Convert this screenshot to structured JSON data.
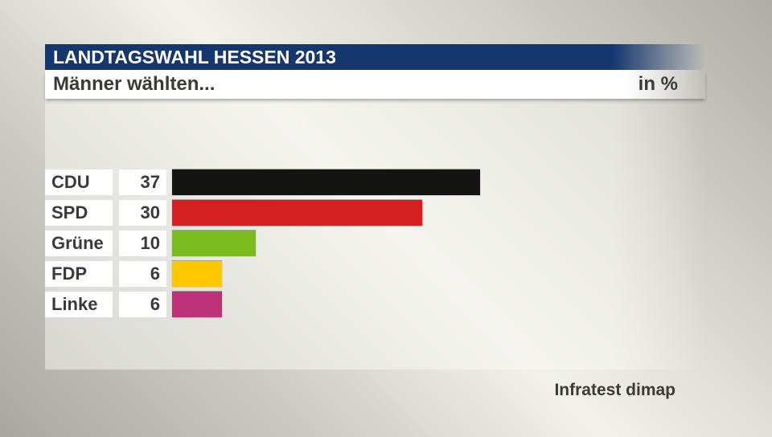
{
  "header": {
    "title": "LANDTAGSWAHL HESSEN 2013",
    "subtitle": "Männer wählten...",
    "unit_label": "in %"
  },
  "footer": {
    "source_label": "Infratest dimap"
  },
  "colors": {
    "header_bar": "#15376e",
    "text_dark": "#3a3a37",
    "box_background": "#ffffff"
  },
  "chart_data": {
    "type": "bar",
    "orientation": "horizontal",
    "title": "Männer wählten...",
    "unit": "%",
    "categories": [
      "CDU",
      "SPD",
      "Grüne",
      "FDP",
      "Linke"
    ],
    "values": [
      37,
      30,
      10,
      6,
      6
    ],
    "bar_colors": [
      "#141413",
      "#d42020",
      "#7abb1d",
      "#fdc800",
      "#bd3176"
    ],
    "xlim": [
      0,
      40
    ],
    "grid": false,
    "legend": false,
    "source": "Infratest dimap"
  }
}
